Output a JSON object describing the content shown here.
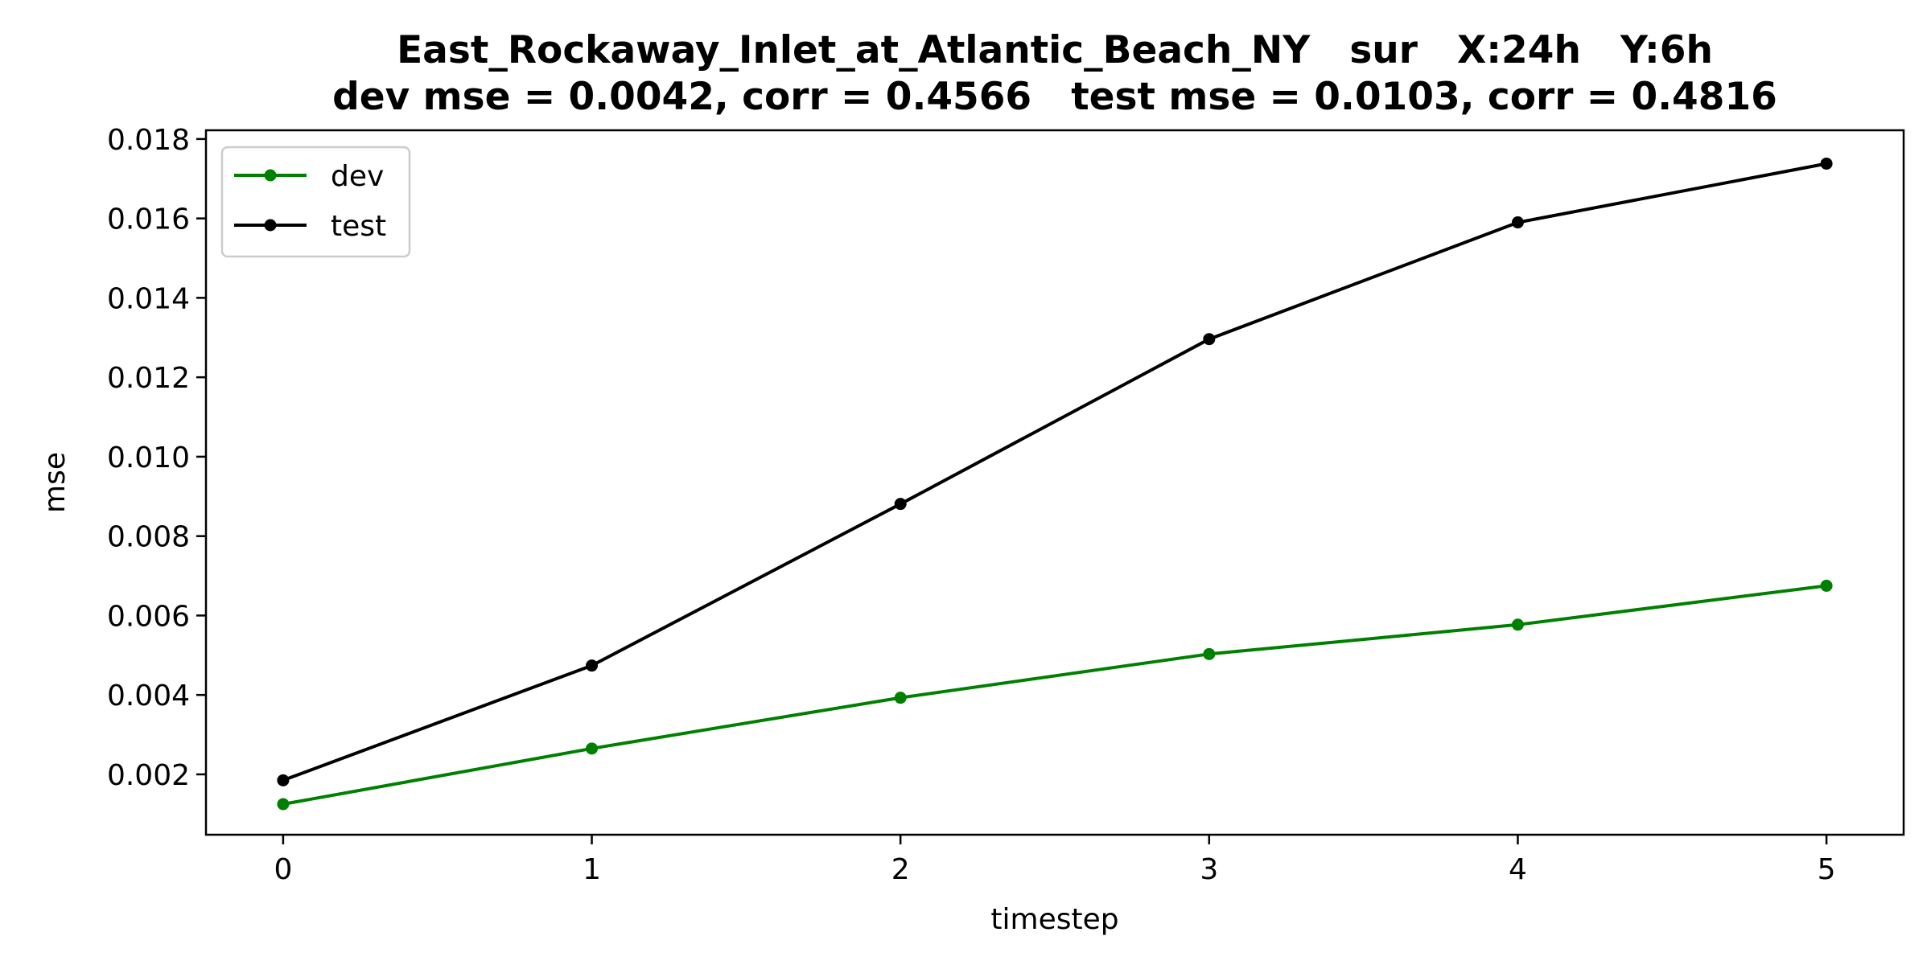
{
  "chart_data": {
    "type": "line",
    "title_line1": "East_Rockaway_Inlet_at_Atlantic_Beach_NY   sur   X:24h   Y:6h",
    "title_line2": "dev mse = 0.0042, corr = 0.4566   test mse = 0.0103, corr = 0.4816",
    "xlabel": "timestep",
    "ylabel": "mse",
    "x": [
      0,
      1,
      2,
      3,
      4,
      5
    ],
    "xticks": [
      "0",
      "1",
      "2",
      "3",
      "4",
      "5"
    ],
    "yticks": [
      "0.002",
      "0.004",
      "0.006",
      "0.008",
      "0.010",
      "0.012",
      "0.014",
      "0.016",
      "0.018"
    ],
    "xlim": [
      -0.25,
      5.25
    ],
    "ylim": [
      0.00048,
      0.01822
    ],
    "grid": false,
    "legend_position": "upper-left",
    "series": [
      {
        "name": "dev",
        "color": "#008000",
        "values": [
          0.00125,
          0.00265,
          0.00393,
          0.00503,
          0.00577,
          0.00675
        ]
      },
      {
        "name": "test",
        "color": "#000000",
        "values": [
          0.00185,
          0.00474,
          0.00881,
          0.01296,
          0.0159,
          0.01738
        ]
      }
    ]
  }
}
